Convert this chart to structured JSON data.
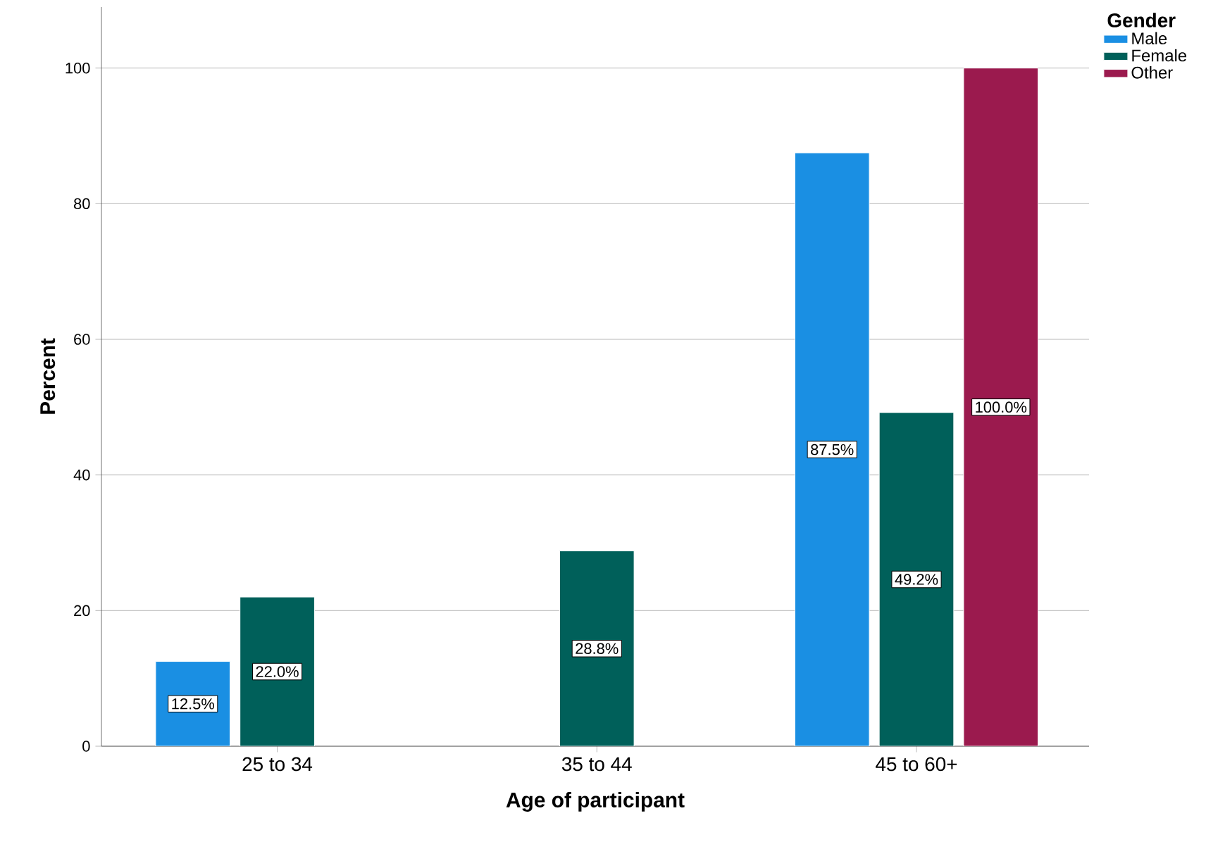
{
  "chart_data": {
    "type": "bar",
    "xlabel": "Age of participant",
    "ylabel": "Percent",
    "legend_title": "Gender",
    "categories": [
      "25 to 34",
      "35 to 44",
      "45 to 60+"
    ],
    "series": [
      {
        "name": "Male",
        "color": "#1a8fe3",
        "values": [
          12.5,
          null,
          87.5
        ],
        "value_labels": [
          "12.5%",
          null,
          "87.5%"
        ]
      },
      {
        "name": "Female",
        "color": "#00605a",
        "values": [
          22.0,
          28.8,
          49.2
        ],
        "value_labels": [
          "22.0%",
          "28.8%",
          "49.2%"
        ]
      },
      {
        "name": "Other",
        "color": "#9b1a4e",
        "values": [
          null,
          null,
          100.0
        ],
        "value_labels": [
          null,
          null,
          "100.0%"
        ]
      }
    ],
    "ylim": [
      0,
      109
    ],
    "yticks": [
      0,
      20,
      40,
      60,
      80,
      100
    ],
    "grid": "y",
    "legend": "top right"
  }
}
